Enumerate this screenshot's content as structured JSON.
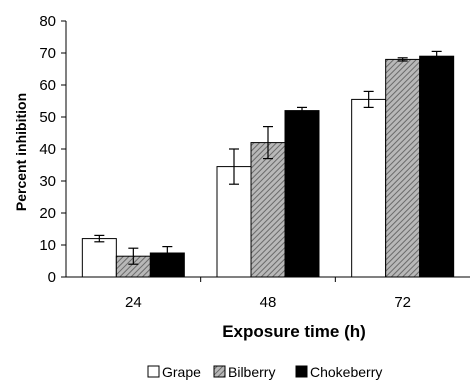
{
  "chart_data": {
    "type": "bar",
    "xlabel": "Exposure time (h)",
    "ylabel": "Percent inhibition",
    "ylim": [
      0,
      80
    ],
    "yticks": [
      0,
      10,
      20,
      30,
      40,
      50,
      60,
      70,
      80
    ],
    "categories": [
      "24",
      "48",
      "72"
    ],
    "series": [
      {
        "name": "Grape",
        "values": [
          12,
          34.5,
          55.5
        ],
        "errors": [
          1,
          5.5,
          2.5
        ],
        "fill": "#ffffff",
        "pattern": "none"
      },
      {
        "name": "Bilberry",
        "values": [
          6.5,
          42,
          68
        ],
        "errors": [
          2.5,
          5,
          0.5
        ],
        "fill": "#9a9a9a",
        "pattern": "hatched"
      },
      {
        "name": "Chokeberry",
        "values": [
          7.5,
          52,
          69
        ],
        "errors": [
          2,
          1,
          1.5
        ],
        "fill": "#000000",
        "pattern": "none"
      }
    ],
    "grid": false,
    "legend_position": "bottom"
  }
}
